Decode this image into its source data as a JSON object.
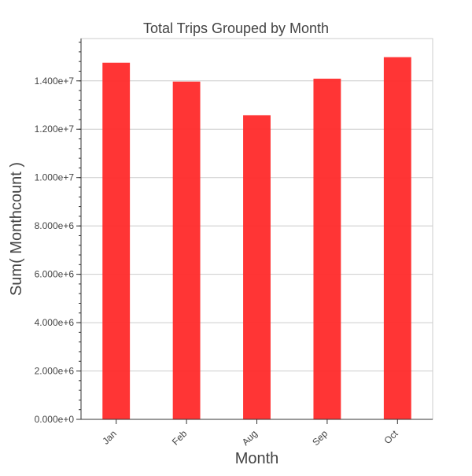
{
  "chart_data": {
    "type": "bar",
    "title": "Total Trips Grouped by Month",
    "xlabel": "Month",
    "ylabel": "Sum( Monthcount )",
    "categories": [
      "Jan",
      "Feb",
      "Aug",
      "Sep",
      "Oct"
    ],
    "series": [
      {
        "values": [
          14750000,
          13970000,
          12580000,
          14090000,
          14980000
        ],
        "color": "#ff2a2a"
      }
    ],
    "ylim": [
      0,
      15750000
    ],
    "y_ticks": [
      0,
      2000000,
      4000000,
      6000000,
      8000000,
      10000000,
      12000000,
      14000000
    ],
    "y_tick_labels": [
      "0.000e+0",
      "2.000e+6",
      "4.000e+6",
      "6.000e+6",
      "8.000e+6",
      "1.000e+7",
      "1.200e+7",
      "1.400e+7"
    ],
    "grid": true,
    "colors": {
      "bar": "#ff2a2a",
      "grid": "#cccccc",
      "axis": "#333333",
      "text": "#444444"
    }
  }
}
